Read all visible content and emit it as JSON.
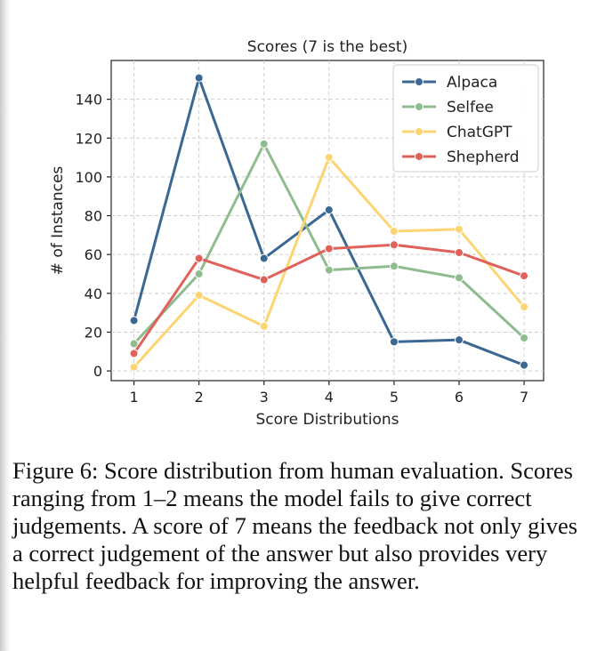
{
  "chart_data": {
    "type": "line",
    "title": "Scores (7 is the best)",
    "xlabel": "Score Distributions",
    "ylabel": "# of Instances",
    "x": [
      1,
      2,
      3,
      4,
      5,
      6,
      7
    ],
    "xticks": [
      "1",
      "2",
      "3",
      "4",
      "5",
      "6",
      "7"
    ],
    "yticks": [
      "0",
      "20",
      "40",
      "60",
      "80",
      "100",
      "120",
      "140"
    ],
    "ylim": [
      -5,
      160
    ],
    "xlim": [
      0.65,
      7.3
    ],
    "grid": true,
    "legend_position": "top-right",
    "series": [
      {
        "name": "Alpaca",
        "color": "#3b6793",
        "values": [
          26,
          151,
          58,
          83,
          15,
          16,
          3
        ]
      },
      {
        "name": "Selfee",
        "color": "#8fbc8f",
        "values": [
          14,
          50,
          117,
          52,
          54,
          48,
          17
        ]
      },
      {
        "name": "ChatGPT",
        "color": "#fcd472",
        "values": [
          2,
          39,
          23,
          110,
          72,
          73,
          33
        ]
      },
      {
        "name": "Shepherd",
        "color": "#e0605a",
        "values": [
          9,
          58,
          47,
          63,
          65,
          61,
          49
        ]
      }
    ]
  },
  "caption": {
    "text": "Figure 6:  Score distribution from human evaluation. Scores ranging from 1–2 means the model fails to give correct judgements.  A score of 7 means the feedback not only gives a correct judgement of the answer but also provides very helpful feedback for improving the answer."
  }
}
